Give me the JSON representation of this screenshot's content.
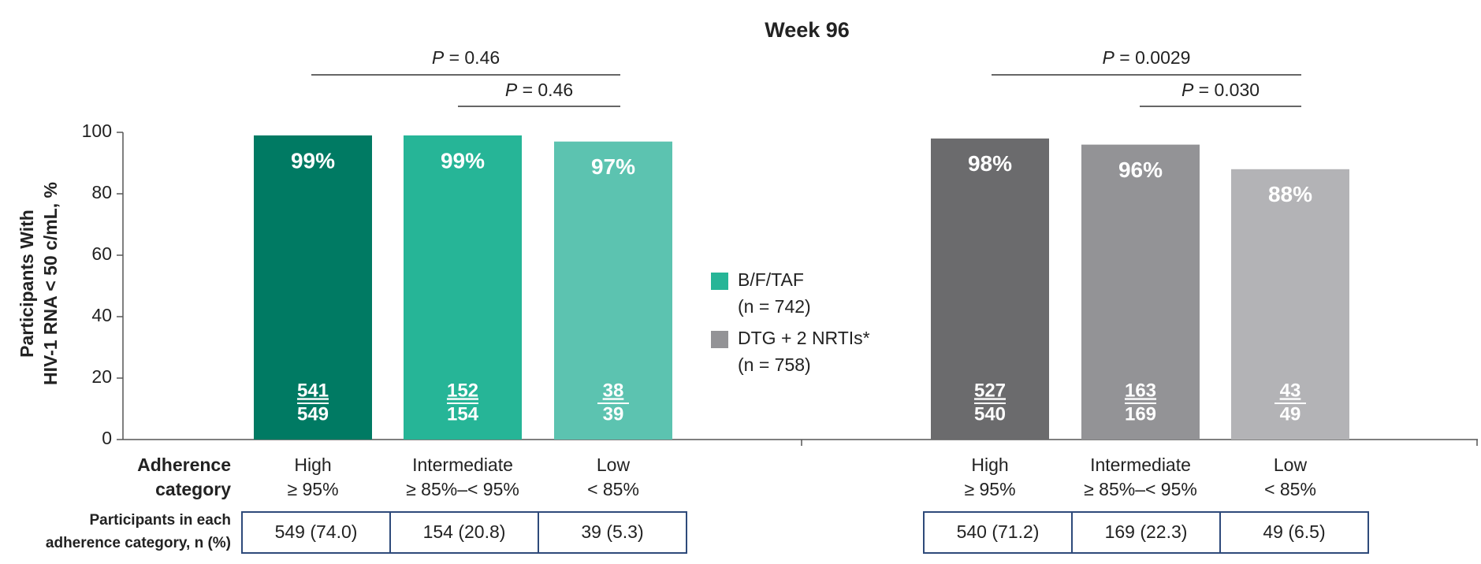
{
  "chart_data": {
    "type": "bar",
    "title": "Week 96",
    "y_label": [
      "Participants With",
      "HIV-1 RNA < 50 c/mL, %"
    ],
    "ylim": [
      0,
      100
    ],
    "yticks": [
      0,
      20,
      40,
      60,
      80,
      100
    ],
    "categories": [
      "High",
      "Intermediate",
      "Low"
    ],
    "category_sublabels": [
      "≥ 95%",
      "≥ 85%–< 95%",
      "< 85%"
    ],
    "category_row_label": [
      "Adherence",
      "category"
    ],
    "table_row_label": [
      "Participants in each",
      "adherence category, n (%)"
    ],
    "series": [
      {
        "name": "B/F/TAF",
        "n_label": "(n = 742)",
        "color": "#26b597",
        "bar_colors": [
          "#007a63",
          "#26b597",
          "#5cc3b0"
        ],
        "values": [
          99,
          99,
          97
        ],
        "value_labels": [
          "99%",
          "99%",
          "97%"
        ],
        "fractions": [
          [
            "541",
            "549"
          ],
          [
            "152",
            "154"
          ],
          [
            "38",
            "39"
          ]
        ],
        "table": [
          "549 (74.0)",
          "154 (20.8)",
          "39 (5.3)"
        ],
        "comparisons": [
          {
            "p": "P",
            "text": "= 0.46"
          },
          {
            "p": "P",
            "text": "= 0.46"
          }
        ]
      },
      {
        "name": "DTG + 2 NRTIs*",
        "n_label": "(n = 758)",
        "color": "#939396",
        "bar_colors": [
          "#6b6b6d",
          "#939396",
          "#b3b3b6"
        ],
        "values": [
          98,
          96,
          88
        ],
        "value_labels": [
          "98%",
          "96%",
          "88%"
        ],
        "fractions": [
          [
            "527",
            "540"
          ],
          [
            "163",
            "169"
          ],
          [
            "43",
            "49"
          ]
        ],
        "table": [
          "540 (71.2)",
          "169 (22.3)",
          "49 (6.5)"
        ],
        "comparisons": [
          {
            "p": "P",
            "text": "= 0.0029"
          },
          {
            "p": "P",
            "text": "= 0.030"
          }
        ]
      }
    ]
  }
}
